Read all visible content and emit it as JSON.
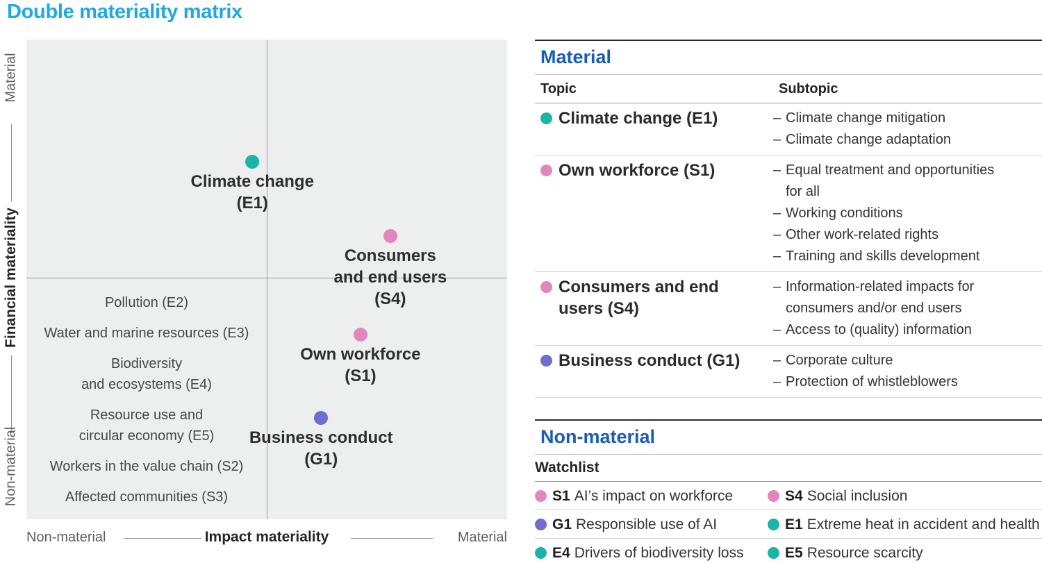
{
  "title": "Double materiality matrix",
  "colors": {
    "title_cyan": "#22a8e0",
    "header_blue": "#1b5cb5",
    "teal": "#1cb4a8",
    "pink": "#e287bd",
    "purple": "#706dd2"
  },
  "chart_data": {
    "type": "scatter",
    "title": "Double materiality matrix",
    "xlabel": "Impact materiality",
    "ylabel": "Financial materiality",
    "x_axis_ends": {
      "left": "Non-material",
      "right": "Material"
    },
    "y_axis_ends": {
      "bottom": "Non-material",
      "top": "Material"
    },
    "xlim": [
      0,
      1
    ],
    "ylim": [
      0,
      1
    ],
    "quadrant_split": {
      "x": 0.5,
      "y": 0.5
    },
    "grid": false,
    "points": [
      {
        "id": "E1",
        "name": "Climate change (E1)",
        "label_lines": [
          "Climate change",
          "(E1)"
        ],
        "color": "teal",
        "x": 0.47,
        "y": 0.745
      },
      {
        "id": "S4",
        "name": "Consumers and end users (S4)",
        "label_lines": [
          "Consumers",
          "and end users",
          "(S4)"
        ],
        "color": "pink",
        "x": 0.757,
        "y": 0.59
      },
      {
        "id": "S1",
        "name": "Own workforce (S1)",
        "label_lines": [
          "Own workforce",
          "(S1)"
        ],
        "color": "pink",
        "x": 0.695,
        "y": 0.385
      },
      {
        "id": "G1",
        "name": "Business conduct (G1)",
        "label_lines": [
          "Business conduct",
          "(G1)"
        ],
        "color": "purple",
        "x": 0.613,
        "y": 0.211
      }
    ],
    "non_material_quadrant_items": [
      {
        "lines": [
          "Pollution (E2)"
        ]
      },
      {
        "lines": [
          "Water and marine resources (E3)"
        ]
      },
      {
        "lines": [
          "Biodiversity",
          "and ecosystems (E4)"
        ]
      },
      {
        "lines": [
          "Resource use and",
          "circular economy (E5)"
        ]
      },
      {
        "lines": [
          "Workers in the value chain (S2)"
        ]
      },
      {
        "lines": [
          "Affected communities (S3)"
        ]
      }
    ]
  },
  "material_table": {
    "heading": "Material",
    "columns": {
      "topic": "Topic",
      "subtopic": "Subtopic"
    },
    "rows": [
      {
        "code": "E1",
        "color": "teal",
        "topic": "Climate change (E1)",
        "subtopics": [
          "Climate change mitigation",
          "Climate change adaptation"
        ]
      },
      {
        "code": "S1",
        "color": "pink",
        "topic": "Own workforce (S1)",
        "subtopics": [
          "Equal treatment and opportunities for all",
          "Working conditions",
          "Other work-related rights",
          "Training and skills development"
        ]
      },
      {
        "code": "S4",
        "color": "pink",
        "topic": "Consumers and end users (S4)",
        "subtopics": [
          "Information-related impacts for consumers and/or end users",
          "Access to (quality) information"
        ]
      },
      {
        "code": "G1",
        "color": "purple",
        "topic": "Business conduct (G1)",
        "subtopics": [
          "Corporate culture",
          "Protection of whistleblowers"
        ]
      }
    ]
  },
  "watchlist_table": {
    "heading": "Non-material",
    "subheading": "Watchlist",
    "rows": [
      [
        {
          "code": "S1",
          "color": "pink",
          "text": "AI’s impact on workforce"
        },
        {
          "code": "S4",
          "color": "pink",
          "text": "Social inclusion"
        }
      ],
      [
        {
          "code": "G1",
          "color": "purple",
          "text": "Responsible use of AI"
        },
        {
          "code": "E1",
          "color": "teal",
          "text": "Extreme heat in accident and health"
        }
      ],
      [
        {
          "code": "E4",
          "color": "teal",
          "text": "Drivers of biodiversity loss"
        },
        {
          "code": "E5",
          "color": "teal",
          "text": "Resource scarcity"
        }
      ]
    ]
  }
}
